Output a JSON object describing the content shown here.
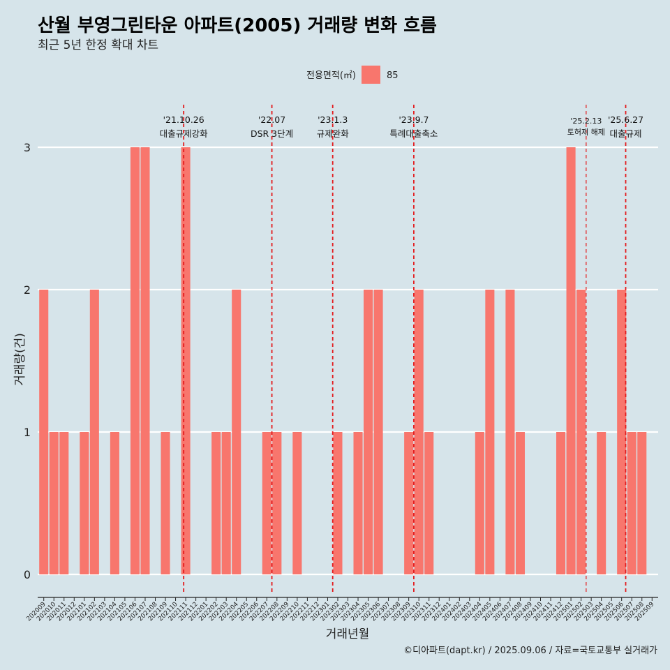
{
  "title": "산월 부영그린타운 아파트(2005) 거래량 변화 흐름",
  "subtitle": "최근 5년 한정 확대 차트",
  "caption": "©디아파트(dapt.kr) / 2025.09.06 / 자료=국토교통부 실거래가",
  "legend": {
    "title": "전용면적(㎡)",
    "items": [
      {
        "label": "85",
        "color": "#f8766d"
      }
    ]
  },
  "colors": {
    "background": "#d6e4ea",
    "bar": "#f8766d",
    "event_line": "#e31a1c",
    "grid": "#ffffff"
  },
  "chart_data": {
    "type": "bar",
    "xlabel": "거래년월",
    "ylabel": "거래량(건)",
    "ylim": [
      0,
      3
    ],
    "yticks": [
      0,
      1,
      2,
      3
    ],
    "grid": "horizontal-major",
    "legend_position": "top",
    "categories": [
      "202009",
      "202010",
      "202011",
      "202012",
      "202101",
      "202102",
      "202103",
      "202104",
      "202105",
      "202106",
      "202107",
      "202108",
      "202109",
      "202110",
      "202111",
      "202112",
      "202201",
      "202202",
      "202203",
      "202204",
      "202205",
      "202206",
      "202207",
      "202208",
      "202209",
      "202210",
      "202211",
      "202212",
      "202301",
      "202302",
      "202303",
      "202304",
      "202305",
      "202306",
      "202307",
      "202308",
      "202309",
      "202310",
      "202311",
      "202312",
      "202401",
      "202402",
      "202403",
      "202404",
      "202405",
      "202406",
      "202407",
      "202408",
      "202409",
      "202410",
      "202411",
      "202412",
      "202501",
      "202502",
      "202503",
      "202504",
      "202505",
      "202506",
      "202507",
      "202508",
      "202509"
    ],
    "series": [
      {
        "name": "85",
        "values": [
          2,
          1,
          1,
          0,
          1,
          2,
          0,
          1,
          0,
          3,
          3,
          0,
          1,
          0,
          3,
          0,
          0,
          1,
          1,
          2,
          0,
          0,
          1,
          1,
          0,
          1,
          0,
          0,
          0,
          1,
          0,
          1,
          2,
          2,
          0,
          0,
          1,
          2,
          1,
          0,
          0,
          0,
          0,
          1,
          2,
          0,
          2,
          1,
          0,
          0,
          0,
          1,
          3,
          2,
          0,
          1,
          0,
          2,
          1,
          1,
          0
        ]
      }
    ],
    "annotations": [
      {
        "date": "'21.10.26",
        "label": "대출규제강화",
        "position": 13.8,
        "style": "large"
      },
      {
        "date": "'22.07",
        "label": "DSR 3단계",
        "position": 22.5,
        "style": "large"
      },
      {
        "date": "'23.1.3",
        "label": "규제완화",
        "position": 28.5,
        "style": "large"
      },
      {
        "date": "'23.9.7",
        "label": "특례대출축소",
        "position": 36.5,
        "style": "large"
      },
      {
        "date": "'25.2.13",
        "label": "토허제 해제",
        "position": 53.5,
        "style": "small"
      },
      {
        "date": "'25.6.27",
        "label": "대출규제",
        "position": 57.4,
        "style": "large"
      }
    ]
  }
}
